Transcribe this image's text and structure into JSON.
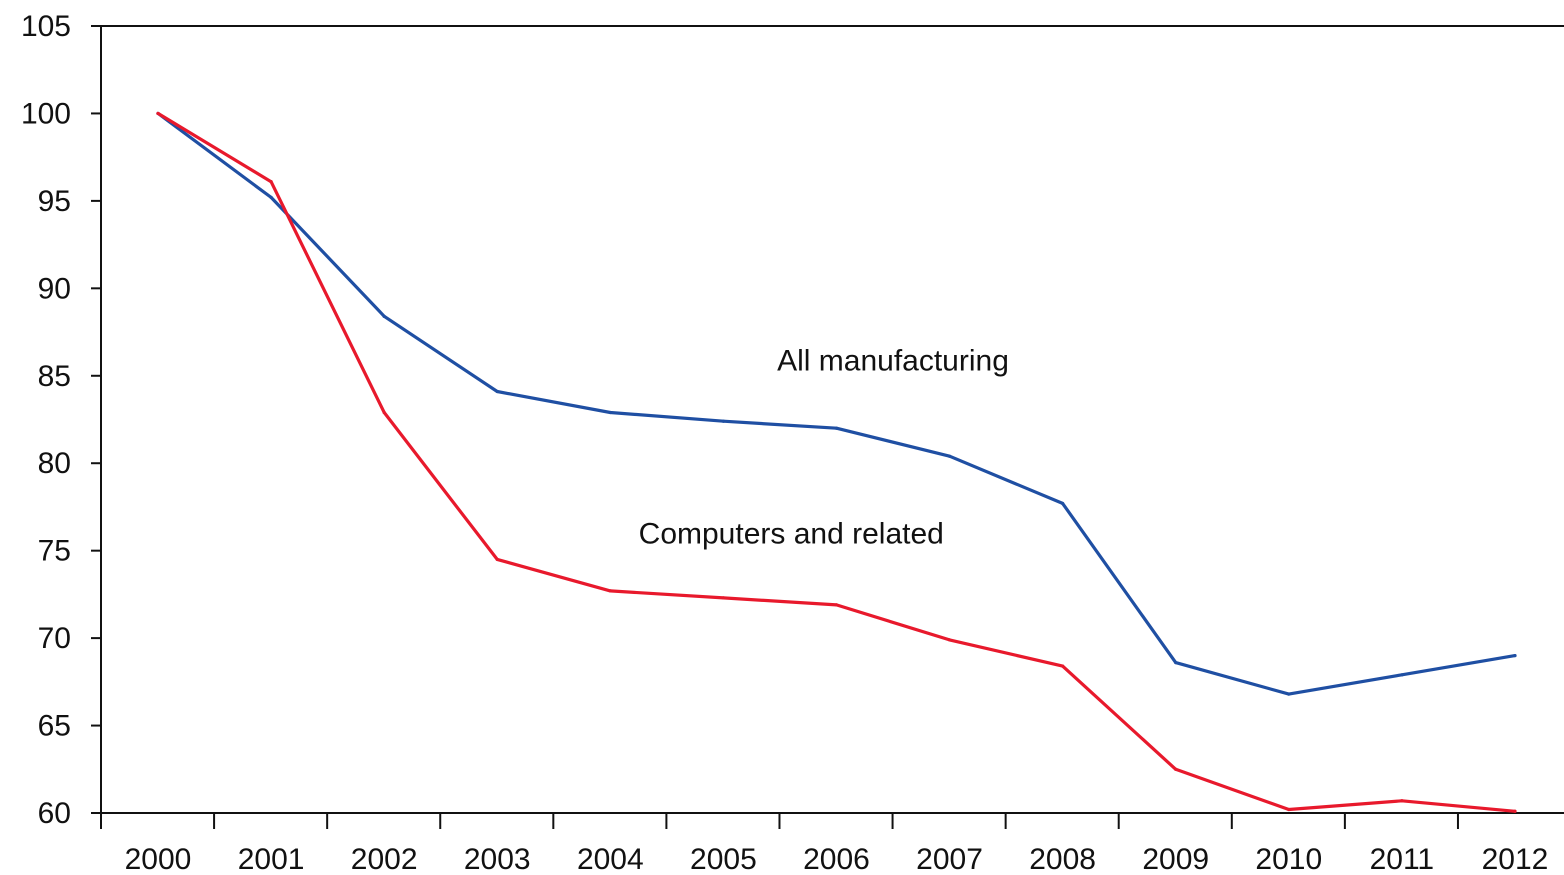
{
  "chart_data": {
    "type": "line",
    "title": "",
    "xlabel": "",
    "ylabel": "",
    "x": [
      2000,
      2001,
      2002,
      2003,
      2004,
      2005,
      2006,
      2007,
      2008,
      2009,
      2010,
      2011,
      2012
    ],
    "x_tick_labels": [
      "2000",
      "2001",
      "2002",
      "2003",
      "2004",
      "2005",
      "2006",
      "2007",
      "2008",
      "2009",
      "2010",
      "2011",
      "2012"
    ],
    "ylim": [
      60,
      105
    ],
    "y_ticks": [
      60,
      65,
      70,
      75,
      80,
      85,
      90,
      95,
      100,
      105
    ],
    "y_tick_labels": [
      "60",
      "65",
      "70",
      "75",
      "80",
      "85",
      "90",
      "95",
      "100",
      "105"
    ],
    "grid": false,
    "legend": "none",
    "series": [
      {
        "name": "All manufacturing",
        "color": "#1f4fa3",
        "values": [
          100,
          95.2,
          88.4,
          84.1,
          82.9,
          82.4,
          82.0,
          80.4,
          77.7,
          68.6,
          66.8,
          67.9,
          69.0
        ]
      },
      {
        "name": "Computers and related",
        "color": "#e8192c",
        "values": [
          100,
          96.1,
          82.9,
          74.5,
          72.7,
          72.3,
          71.9,
          69.9,
          68.4,
          62.5,
          60.2,
          60.7,
          60.1
        ]
      }
    ],
    "annotations": [
      {
        "text": "All manufacturing",
        "x": 2006.5,
        "y": 85.3
      },
      {
        "text": "Computers and related",
        "x": 2005.6,
        "y": 75.4
      }
    ]
  }
}
